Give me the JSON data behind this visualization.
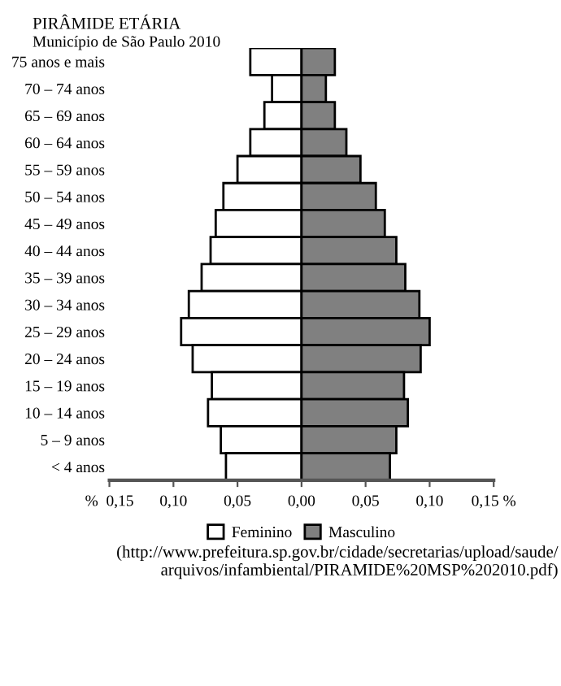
{
  "chart_data": {
    "type": "bar",
    "orientation": "horizontal",
    "stacked": true,
    "title": "PIRÂMIDE ETÁRIA",
    "subtitle": "Município de São Paulo 2010",
    "categories": [
      "75 anos e mais",
      "70 – 74 anos",
      "65 – 69 anos",
      "60 – 64 anos",
      "55 – 59 anos",
      "50 – 54 anos",
      "45 – 49 anos",
      "40 – 44 anos",
      "35 – 39 anos",
      "30 – 34 anos",
      "25 – 29 anos",
      "20 – 24 anos",
      "15 – 19 anos",
      "10 – 14 anos",
      "5 – 9 anos",
      "< 4 anos"
    ],
    "series": [
      {
        "name": "Feminino",
        "color": "#ffffff",
        "values": [
          -0.04,
          -0.023,
          -0.029,
          -0.04,
          -0.05,
          -0.061,
          -0.067,
          -0.071,
          -0.078,
          -0.088,
          -0.094,
          -0.085,
          -0.07,
          -0.073,
          -0.063,
          -0.059
        ]
      },
      {
        "name": "Masculino",
        "color": "#808080",
        "values": [
          0.026,
          0.019,
          0.026,
          0.035,
          0.046,
          0.058,
          0.065,
          0.074,
          0.081,
          0.092,
          0.1,
          0.093,
          0.08,
          0.083,
          0.074,
          0.069
        ]
      }
    ],
    "xlim": [
      -0.15,
      0.15
    ],
    "xticks": [
      {
        "value": -0.15,
        "label": "%  0,15"
      },
      {
        "value": -0.1,
        "label": "0,10"
      },
      {
        "value": -0.05,
        "label": "0,05"
      },
      {
        "value": 0,
        "label": "0,00"
      },
      {
        "value": 0.05,
        "label": "0,05"
      },
      {
        "value": 0.1,
        "label": "0,10"
      },
      {
        "value": 0.15,
        "label": "0,15 %"
      }
    ],
    "grid": false,
    "legend": "bottom",
    "annotations": [
      "(http://www.prefeitura.sp.gov.br/cidade/secretarias/upload/saude/\narquivos/infambiental/PIRAMIDE%20MSP%202010.pdf)"
    ]
  }
}
